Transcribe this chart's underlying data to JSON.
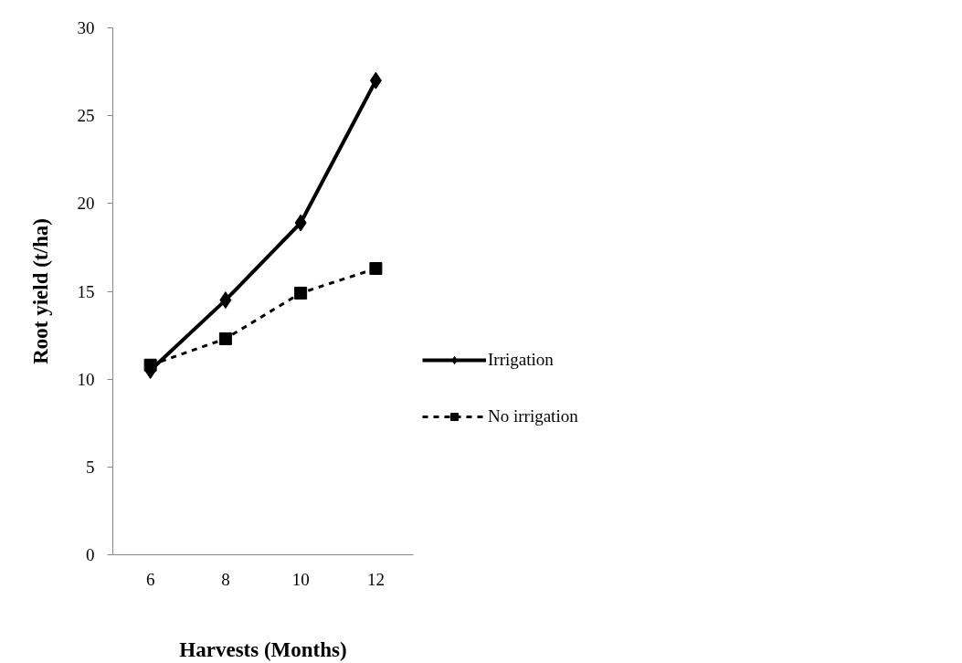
{
  "chart_data": {
    "type": "line",
    "xlabel": "Harvests (Months)",
    "ylabel": "Root yield (t/ha)",
    "categories": [
      "6",
      "8",
      "10",
      "12"
    ],
    "ylim": [
      0,
      30
    ],
    "yticks": [
      0,
      5,
      10,
      15,
      20,
      25,
      30
    ],
    "grid": false,
    "legend": "right",
    "series": [
      {
        "name": "Irrigation",
        "color": "#000000",
        "marker": "diamond",
        "line_style": "solid",
        "values": [
          10.5,
          14.5,
          18.9,
          27.0
        ]
      },
      {
        "name": "No irrigation",
        "color": "#000000",
        "marker": "square",
        "line_style": "dashed",
        "values": [
          10.8,
          12.3,
          14.9,
          16.3
        ]
      }
    ]
  }
}
